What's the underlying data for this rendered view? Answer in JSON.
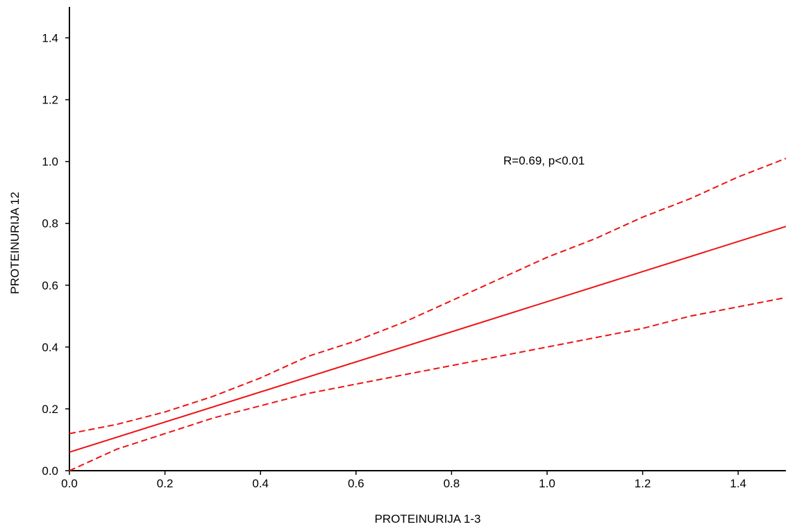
{
  "chart_data": {
    "type": "line",
    "title": "",
    "xlabel": "PROTEINURIJA 1-3",
    "ylabel": "PROTEINURIJA 12",
    "xlim": [
      0.0,
      1.5
    ],
    "ylim": [
      0.0,
      1.5
    ],
    "xticks": [
      "0.0",
      "0.2",
      "0.4",
      "0.6",
      "0.8",
      "1.0",
      "1.2",
      "1.4"
    ],
    "yticks": [
      "0.0",
      "0.2",
      "0.4",
      "0.6",
      "0.8",
      "1.0",
      "1.2",
      "1.4"
    ],
    "grid": false,
    "annotation": "R=0.69, p<0.01",
    "color": "#ee1111",
    "series": [
      {
        "style": "solid",
        "x": [
          0.0,
          1.5
        ],
        "y": [
          0.06,
          0.79
        ]
      },
      {
        "style": "dashed",
        "x": [
          0.0,
          0.1,
          0.2,
          0.3,
          0.4,
          0.5,
          0.6,
          0.7,
          0.8,
          0.9,
          1.0,
          1.1,
          1.2,
          1.3,
          1.4,
          1.5
        ],
        "y": [
          0.12,
          0.15,
          0.19,
          0.24,
          0.3,
          0.37,
          0.42,
          0.48,
          0.55,
          0.62,
          0.69,
          0.75,
          0.82,
          0.88,
          0.95,
          1.01
        ]
      },
      {
        "style": "dashed",
        "x": [
          0.0,
          0.1,
          0.2,
          0.3,
          0.4,
          0.5,
          0.6,
          0.7,
          0.8,
          0.9,
          1.0,
          1.1,
          1.2,
          1.3,
          1.4,
          1.5
        ],
        "y": [
          0.0,
          0.07,
          0.12,
          0.17,
          0.21,
          0.25,
          0.28,
          0.31,
          0.34,
          0.37,
          0.4,
          0.43,
          0.46,
          0.5,
          0.53,
          0.56
        ]
      }
    ]
  }
}
